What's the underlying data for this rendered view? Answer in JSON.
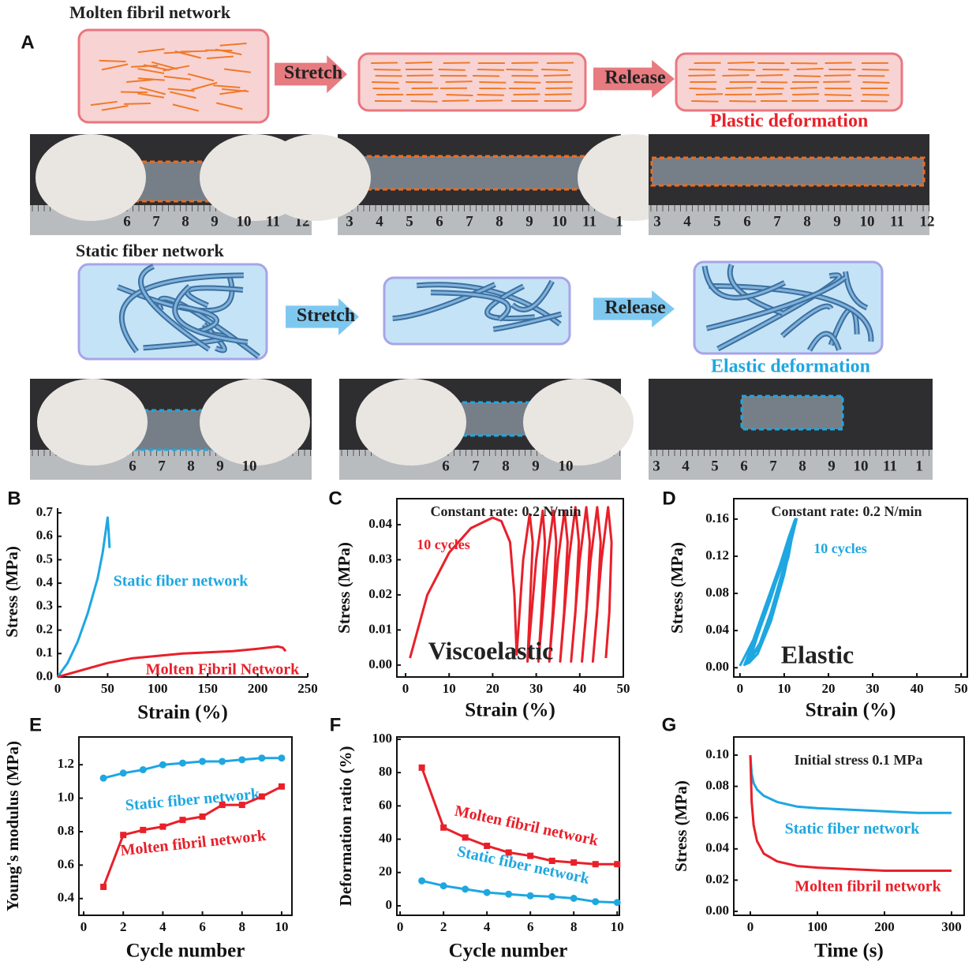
{
  "panel_a": {
    "label": "A",
    "top_title": "Molten fibril network",
    "bottom_title": "Static fiber network",
    "top_arrows": [
      "Stretch",
      "Release"
    ],
    "bottom_arrows": [
      "Stretch",
      "Release"
    ],
    "top_result": "Plastic deformation",
    "bottom_result": "Elastic deformation",
    "photos": [
      {
        "ruler": [
          "6",
          "7",
          "8",
          "9",
          "10",
          "11",
          "12"
        ]
      },
      {
        "ruler": [
          "3",
          "4",
          "5",
          "6",
          "7",
          "8",
          "9",
          "10",
          "11",
          "1"
        ]
      },
      {
        "ruler": [
          "3",
          "4",
          "5",
          "6",
          "7",
          "8",
          "9",
          "10",
          "11",
          "12"
        ]
      },
      {
        "ruler": [
          "6",
          "7",
          "8",
          "9",
          "10"
        ]
      },
      {
        "ruler": [
          "6",
          "7",
          "8",
          "9",
          "10"
        ]
      },
      {
        "ruler": [
          "3",
          "4",
          "5",
          "6",
          "7",
          "8",
          "9",
          "10",
          "11",
          "1"
        ]
      }
    ]
  },
  "chart_data": [
    {
      "type": "line",
      "panel": "B",
      "x_label": "Strain (%)",
      "y_label": "Stress (MPa)",
      "xlim": [
        0,
        250
      ],
      "xticks": [
        0,
        50,
        100,
        150,
        200,
        250
      ],
      "ylim": [
        0,
        0.72
      ],
      "yticks": [
        {
          "value": 0,
          "label": "0.0"
        },
        0.1,
        0.2,
        0.3,
        0.4,
        0.5,
        0.6,
        0.7
      ],
      "series": [
        {
          "name": "Static fiber network",
          "color": "#1ea7e1",
          "x": [
            0,
            10,
            20,
            30,
            40,
            45,
            48,
            50,
            51,
            52
          ],
          "values": [
            0,
            0.06,
            0.15,
            0.27,
            0.42,
            0.53,
            0.62,
            0.68,
            0.62,
            0.55
          ]
        },
        {
          "name": "Molten Fibril Network",
          "color": "#e8202a",
          "x": [
            0,
            25,
            50,
            75,
            100,
            125,
            150,
            175,
            200,
            220,
            225,
            228
          ],
          "values": [
            0,
            0.03,
            0.06,
            0.08,
            0.09,
            0.1,
            0.105,
            0.11,
            0.12,
            0.13,
            0.125,
            0.11
          ]
        }
      ]
    },
    {
      "type": "line",
      "panel": "C",
      "x_label": "Strain (%)",
      "y_label": "Stress (MPa)",
      "xlim": [
        -2,
        50
      ],
      "xticks": [
        0,
        10,
        20,
        30,
        40,
        50
      ],
      "ylim": [
        -0.0034,
        0.0474
      ],
      "yticks": [
        {
          "value": 0,
          "label": "0.00"
        },
        0.01,
        0.02,
        0.03,
        0.04
      ],
      "annotations": [
        "Constant rate: 0.2 N/min",
        "10 cycles",
        "Viscoelastic"
      ],
      "series": [
        {
          "color": "#e8202a",
          "x": [
            1,
            5,
            10,
            15,
            20,
            22,
            24,
            25,
            25.5,
            27,
            28.5,
            29.2,
            28.5,
            28,
            30,
            31.5,
            32,
            31.2,
            30.5,
            32.5,
            34,
            34.6,
            33.8,
            33,
            35,
            36.5,
            37.2,
            36.4,
            35.5,
            37.5,
            39,
            39.8,
            39,
            38,
            40,
            41.5,
            42.3,
            41.5,
            40.5,
            42.5,
            44,
            44.8,
            44,
            43,
            45,
            46.5,
            47.3,
            46.8,
            46
          ],
          "values": [
            0.002,
            0.02,
            0.032,
            0.039,
            0.042,
            0.041,
            0.035,
            0.02,
            0.003,
            0.03,
            0.043,
            0.035,
            0.015,
            0.001,
            0.03,
            0.044,
            0.035,
            0.015,
            0.001,
            0.03,
            0.044,
            0.035,
            0.015,
            0.001,
            0.03,
            0.044,
            0.035,
            0.015,
            0.001,
            0.03,
            0.045,
            0.035,
            0.015,
            0.001,
            0.03,
            0.045,
            0.035,
            0.015,
            0.001,
            0.03,
            0.045,
            0.035,
            0.015,
            0.001,
            0.03,
            0.045,
            0.035,
            0.015,
            0.002
          ]
        }
      ]
    },
    {
      "type": "line",
      "panel": "D",
      "x_label": "Strain (%)",
      "y_label": "Stress (MPa)",
      "xlim": [
        -1.4,
        51.4
      ],
      "xticks": [
        0,
        10,
        20,
        30,
        40,
        50
      ],
      "ylim": [
        -0.01,
        0.182
      ],
      "yticks": [
        {
          "value": 0,
          "label": "0.00"
        },
        0.04,
        0.08,
        0.12,
        0.16
      ],
      "annotations": [
        "Constant rate: 0.2 N/min",
        "10 cycles",
        "Elastic"
      ],
      "series": [
        {
          "color": "#1ea7e1",
          "x": [
            0,
            3,
            6,
            9,
            11,
            12.5,
            11,
            8,
            5,
            2,
            1,
            4,
            7,
            10,
            12.3,
            10,
            7,
            4,
            1.5,
            4,
            7,
            10,
            12.6,
            10,
            7,
            4,
            2,
            5,
            8,
            11,
            12.8,
            10,
            7,
            4
          ],
          "values": [
            0.002,
            0.03,
            0.07,
            0.11,
            0.14,
            0.16,
            0.12,
            0.07,
            0.03,
            0.008,
            0.003,
            0.04,
            0.08,
            0.12,
            0.158,
            0.11,
            0.06,
            0.02,
            0.004,
            0.035,
            0.075,
            0.12,
            0.16,
            0.1,
            0.05,
            0.015,
            0.005,
            0.05,
            0.09,
            0.13,
            0.16,
            0.105,
            0.055,
            0.015
          ]
        }
      ]
    },
    {
      "type": "line",
      "panel": "E",
      "x_label": "Cycle number",
      "y_label": "Young's modulus (MPa)",
      "xlim": [
        -0.24,
        10.52
      ],
      "xticks": [
        0,
        2,
        4,
        6,
        8,
        10
      ],
      "ylim": [
        0.3,
        1.366
      ],
      "yticks": [
        0.4,
        0.6,
        0.8,
        {
          "value": 1,
          "label": "1.0"
        },
        1.2
      ],
      "series": [
        {
          "name": "Static fiber network",
          "color": "#1ea7e1",
          "marker": "circle",
          "x": [
            1,
            2,
            3,
            4,
            5,
            6,
            7,
            8,
            9,
            10
          ],
          "values": [
            1.12,
            1.15,
            1.17,
            1.2,
            1.21,
            1.22,
            1.22,
            1.23,
            1.24,
            1.24
          ]
        },
        {
          "name": "Molten fibril network",
          "color": "#e8202a",
          "marker": "square",
          "x": [
            1,
            2,
            3,
            4,
            5,
            6,
            7,
            8,
            9,
            10
          ],
          "values": [
            0.47,
            0.78,
            0.81,
            0.83,
            0.87,
            0.89,
            0.96,
            0.96,
            1.01,
            1.07
          ]
        }
      ]
    },
    {
      "type": "line",
      "panel": "F",
      "x_label": "Cycle number",
      "y_label": "Deformation ratio (%)",
      "xlim": [
        -0.15,
        10.1
      ],
      "xticks": [
        0,
        2,
        4,
        6,
        8,
        10
      ],
      "ylim": [
        -5.7,
        101.4
      ],
      "yticks": [
        0,
        20,
        40,
        60,
        80,
        100
      ],
      "series": [
        {
          "name": "Molten fibril network",
          "color": "#e8202a",
          "marker": "square",
          "x": [
            1,
            2,
            3,
            4,
            5,
            6,
            7,
            8,
            9,
            10
          ],
          "values": [
            83,
            47,
            41,
            36,
            32,
            30,
            27,
            26,
            25,
            25
          ]
        },
        {
          "name": "Static fiber network",
          "color": "#1ea7e1",
          "marker": "circle",
          "x": [
            1,
            2,
            3,
            4,
            5,
            6,
            7,
            8,
            9,
            10
          ],
          "values": [
            15,
            12,
            10,
            8,
            7,
            6,
            5.5,
            4.5,
            2.5,
            2
          ]
        }
      ]
    },
    {
      "type": "line",
      "panel": "G",
      "x_label": "Time (s)",
      "y_label": "Stress (MPa)",
      "xlim": [
        -24.7,
        318.8
      ],
      "xticks": [
        0,
        100,
        200,
        300
      ],
      "ylim": [
        -0.0025,
        0.1116
      ],
      "yticks": [
        {
          "value": 0,
          "label": "0.00"
        },
        0.02,
        0.04,
        0.06,
        0.08,
        {
          "value": 0.1,
          "label": "0.10"
        }
      ],
      "annotations": [
        "Initial stress 0.1 MPa"
      ],
      "series": [
        {
          "name": "Static fiber network",
          "color": "#1ea7e1",
          "x": [
            0,
            2,
            5,
            10,
            20,
            40,
            70,
            100,
            150,
            200,
            250,
            300
          ],
          "values": [
            0.1,
            0.088,
            0.082,
            0.078,
            0.074,
            0.07,
            0.067,
            0.066,
            0.065,
            0.064,
            0.063,
            0.063
          ]
        },
        {
          "name": "Molten fibril network",
          "color": "#e8202a",
          "x": [
            0,
            2,
            5,
            10,
            20,
            40,
            70,
            100,
            150,
            200,
            250,
            300
          ],
          "values": [
            0.1,
            0.07,
            0.055,
            0.045,
            0.037,
            0.032,
            0.029,
            0.028,
            0.027,
            0.026,
            0.026,
            0.026
          ]
        }
      ]
    }
  ]
}
